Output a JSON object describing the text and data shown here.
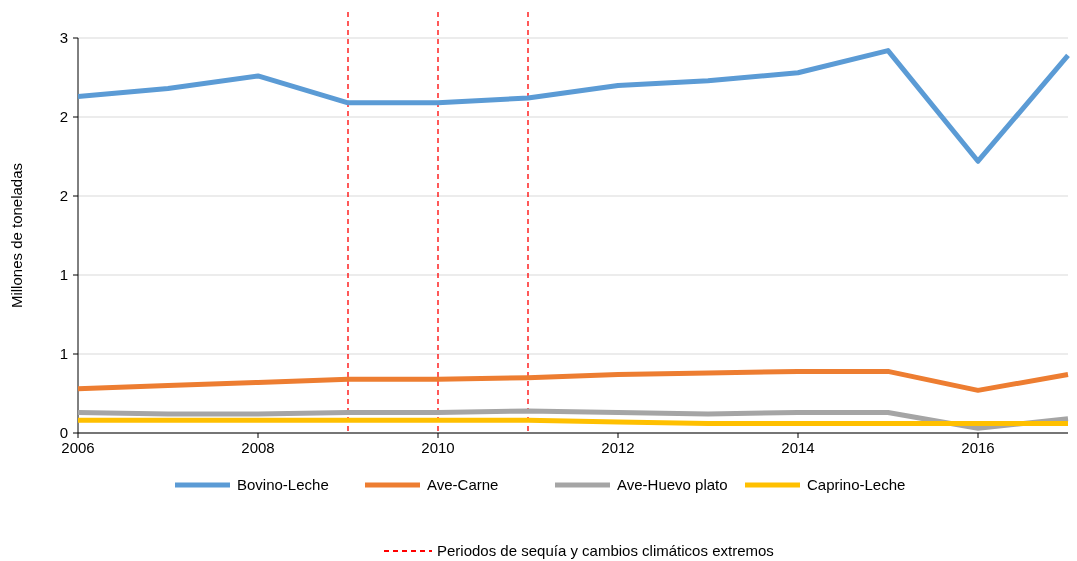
{
  "chart_data": {
    "type": "line",
    "ylabel": "Millones de toneladas",
    "x": [
      2006,
      2007,
      2008,
      2009,
      2010,
      2011,
      2012,
      2013,
      2014,
      2015,
      2016,
      2017
    ],
    "xlim": [
      2006,
      2017
    ],
    "xticks": [
      2006,
      2008,
      2010,
      2012,
      2014,
      2016
    ],
    "ylim": [
      0,
      2.5
    ],
    "yticks": [
      0,
      {
        "value": 0.5,
        "label": "1"
      },
      {
        "value": 1,
        "label": "1"
      },
      {
        "value": 1.5,
        "label": "2"
      },
      {
        "value": 2,
        "label": "2"
      },
      {
        "value": 2.5,
        "label": "3"
      }
    ],
    "grid": "y",
    "legend": "bottom",
    "marker": "none",
    "line_style": "solid",
    "series": [
      {
        "name": "Bovino-Leche",
        "color": "#5b9bd5",
        "values": [
          2.13,
          2.18,
          2.26,
          2.09,
          2.09,
          2.12,
          2.2,
          2.23,
          2.28,
          2.42,
          1.72,
          2.39
        ]
      },
      {
        "name": "Ave-Carne",
        "color": "#ed7d31",
        "values": [
          0.28,
          0.3,
          0.32,
          0.34,
          0.34,
          0.35,
          0.37,
          0.38,
          0.39,
          0.39,
          0.27,
          0.37
        ]
      },
      {
        "name": "Ave-Huevo plato",
        "color": "#a5a5a5",
        "values": [
          0.13,
          0.12,
          0.12,
          0.13,
          0.13,
          0.14,
          0.13,
          0.12,
          0.13,
          0.13,
          0.03,
          0.09
        ]
      },
      {
        "name": "Caprino-Leche",
        "color": "#ffc000",
        "values": [
          0.08,
          0.08,
          0.08,
          0.08,
          0.08,
          0.08,
          0.07,
          0.06,
          0.06,
          0.06,
          0.06,
          0.06
        ]
      }
    ],
    "ref_lines": [
      {
        "axis": "x",
        "value": 2009,
        "label": "Periodos de sequía y cambios climáticos extremos",
        "color": "#ff0000",
        "line_style": "dashed"
      },
      {
        "axis": "x",
        "value": 2010,
        "color": "#ff0000",
        "line_style": "dashed"
      },
      {
        "axis": "x",
        "value": 2011,
        "color": "#ff0000",
        "line_style": "dashed"
      }
    ]
  }
}
